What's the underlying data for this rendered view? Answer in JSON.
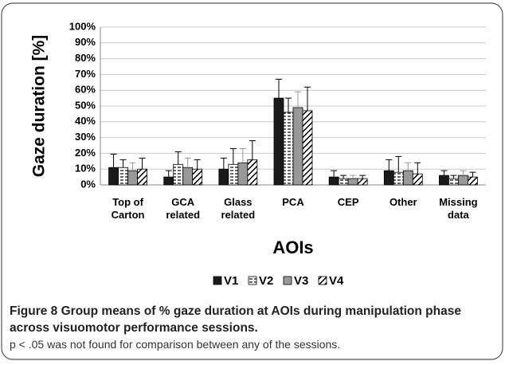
{
  "chart_data": {
    "type": "bar",
    "y_label": "Gaze duration [%]",
    "x_label": "AOIs",
    "categories": [
      "Top of Carton",
      "GCA related",
      "Glass related",
      "PCA",
      "CEP",
      "Other",
      "Missing data"
    ],
    "series": [
      {
        "name": "V1",
        "color": "#1a1a1a",
        "pattern": "solid",
        "values": [
          11,
          5,
          10,
          55,
          5,
          9,
          6
        ],
        "errors": [
          8.5,
          4,
          7,
          12,
          4,
          7,
          3
        ]
      },
      {
        "name": "V2",
        "color": "#ffffff",
        "pattern": "horizontal",
        "values": [
          11,
          13,
          13,
          46,
          4,
          8,
          4
        ],
        "errors": [
          5,
          8,
          10,
          9,
          2,
          10,
          2
        ]
      },
      {
        "name": "V3",
        "color": "#999999",
        "pattern": "solid",
        "values": [
          9,
          11,
          14,
          49,
          4,
          9,
          6
        ],
        "errors": [
          5,
          6,
          9,
          10,
          2,
          5,
          3
        ]
      },
      {
        "name": "V4",
        "color": "#ffffff",
        "pattern": "diagonal",
        "values": [
          10,
          10,
          16,
          47,
          4,
          7,
          5
        ],
        "errors": [
          7,
          6,
          12,
          15,
          2,
          7,
          3
        ]
      }
    ],
    "ylim": [
      0,
      100
    ],
    "yticks": [
      {
        "value": 0,
        "label": "0%"
      },
      {
        "value": 10,
        "label": "10%"
      },
      {
        "value": 20,
        "label": "20%"
      },
      {
        "value": 30,
        "label": "30%"
      },
      {
        "value": 40,
        "label": "40%"
      },
      {
        "value": 50,
        "label": "50%"
      },
      {
        "value": 60,
        "label": "60%"
      },
      {
        "value": 70,
        "label": "70%"
      },
      {
        "value": 80,
        "label": "80%"
      },
      {
        "value": 90,
        "label": "90%"
      },
      {
        "value": 100,
        "label": "100%"
      }
    ],
    "grid": true,
    "legend": "bottom"
  },
  "caption": {
    "label": "Figure 8",
    "title": "Group means of % gaze duration at AOIs during manipulation phase across visuomotor performance sessions.",
    "note": "p < .05 was not found for comparison between any of the sessions."
  }
}
